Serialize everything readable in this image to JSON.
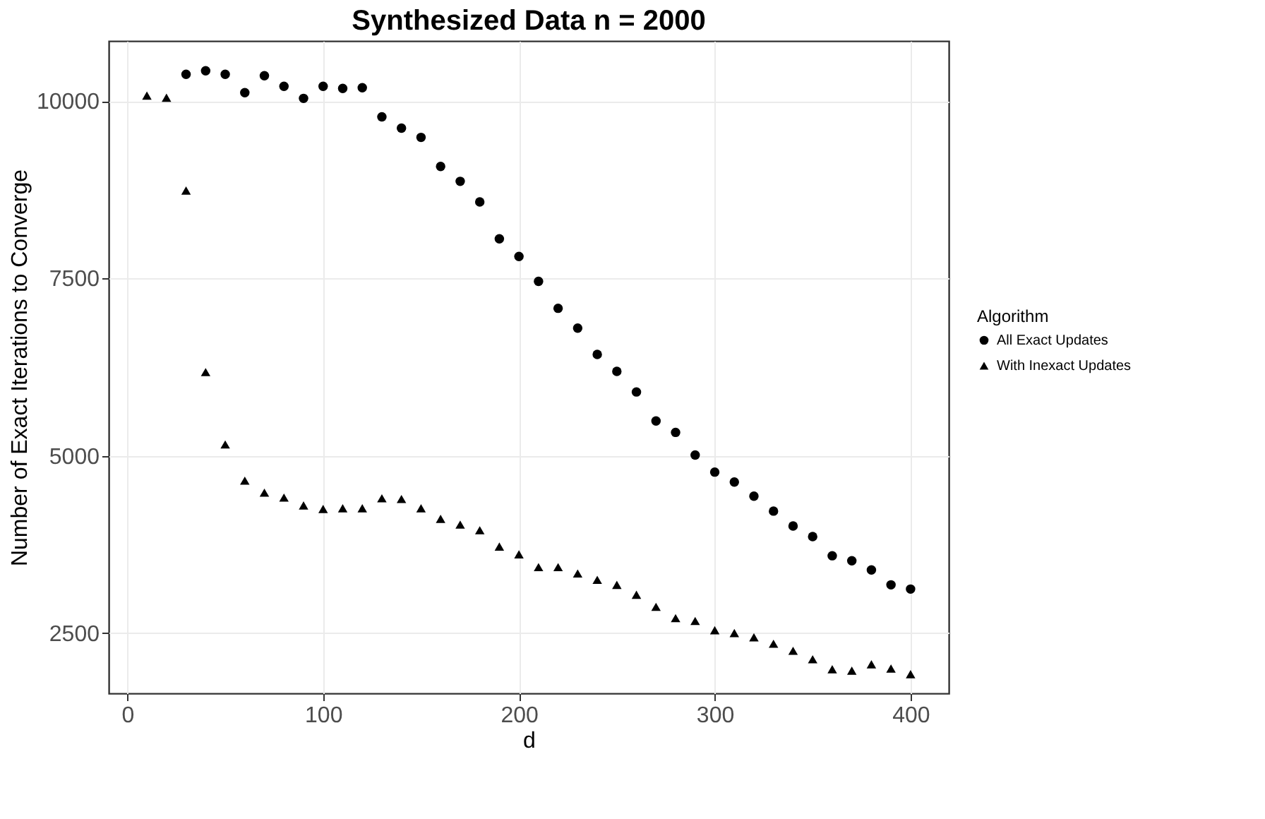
{
  "chart_data": {
    "type": "scatter",
    "title": "Synthesized Data n = 2000",
    "xlabel": "d",
    "ylabel": "Number of Exact Iterations to Converge",
    "legend_title": "Algorithm",
    "x": [
      10,
      20,
      30,
      40,
      50,
      60,
      70,
      80,
      90,
      100,
      110,
      120,
      130,
      140,
      150,
      160,
      170,
      180,
      190,
      200,
      210,
      220,
      230,
      240,
      250,
      260,
      270,
      280,
      290,
      300,
      310,
      320,
      330,
      340,
      350,
      360,
      370,
      380,
      390,
      400
    ],
    "series": [
      {
        "name": "All Exact Updates",
        "color": "#000000",
        "marker": "circle",
        "values": [
          null,
          null,
          10380,
          10430,
          10380,
          10120,
          10360,
          10210,
          10040,
          10210,
          10180,
          10190,
          9780,
          9620,
          9490,
          9080,
          8870,
          8580,
          8060,
          7810,
          7460,
          7080,
          6800,
          6430,
          6190,
          5900,
          5490,
          5330,
          5010,
          4770,
          4630,
          4430,
          4220,
          4010,
          3860,
          3590,
          3520,
          3390,
          3180,
          3120
        ]
      },
      {
        "name": "With Inexact Updates",
        "color": "#000000",
        "marker": "triangle",
        "values": [
          10080,
          10050,
          8740,
          6180,
          5160,
          4650,
          4480,
          4410,
          4300,
          4250,
          4260,
          4260,
          4400,
          4390,
          4260,
          4110,
          4030,
          3950,
          3720,
          3610,
          3430,
          3430,
          3340,
          3250,
          3180,
          3040,
          2870,
          2710,
          2670,
          2540,
          2500,
          2440,
          2350,
          2250,
          2130,
          1990,
          1970,
          2060,
          2000,
          1920
        ]
      }
    ],
    "xlim": [
      -9.5,
      419.5
    ],
    "ylim": [
      1650,
      10850
    ],
    "xticks": [
      0,
      100,
      200,
      300,
      400
    ],
    "yticks": [
      2500,
      5000,
      7500,
      10000
    ],
    "grid": true,
    "legend": "right"
  }
}
